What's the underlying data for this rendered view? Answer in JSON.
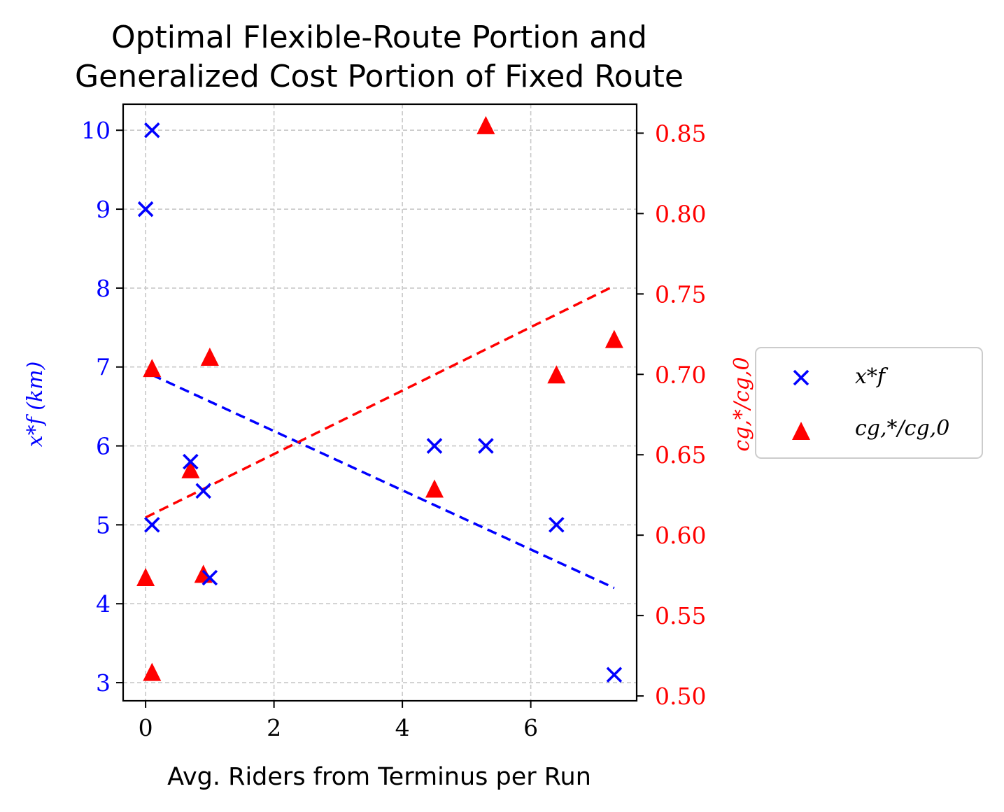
{
  "colors": {
    "series_x": "#0000ff",
    "series_c": "#ff0000",
    "grid": "#c8c8c8",
    "axis": "#000000",
    "legend_border": "#cccccc"
  },
  "chart_data": {
    "type": "scatter",
    "title_line1": "Optimal Flexible-Route Portion and",
    "title_line2": "Generalized Cost Portion of Fixed Route",
    "xlabel": "Avg. Riders from Terminus per Run",
    "ylabel_left": "x*f (km)",
    "ylabel_right": "cg,*/cg,0",
    "xlim": [
      -0.35,
      7.65
    ],
    "xticks": [
      0,
      2,
      4,
      6
    ],
    "ylim_left": [
      2.77,
      10.33
    ],
    "yticks_left": [
      3,
      4,
      5,
      6,
      7,
      8,
      9,
      10
    ],
    "ylim_right": [
      0.497,
      0.868
    ],
    "yticks_right": [
      0.5,
      0.55,
      0.6,
      0.65,
      0.7,
      0.75,
      0.8,
      0.85
    ],
    "yticks_right_labels": [
      "0.50",
      "0.55",
      "0.60",
      "0.65",
      "0.70",
      "0.75",
      "0.80",
      "0.85"
    ],
    "grid": true,
    "legend_position": "outside-right",
    "series": [
      {
        "name": "x*f",
        "axis": "left",
        "marker": "x",
        "x": [
          0.1,
          0.0,
          0.7,
          0.9,
          1.0,
          4.5,
          5.3,
          6.4,
          7.3,
          0.1
        ],
        "y": [
          10.0,
          9.0,
          5.8,
          5.43,
          4.33,
          6.0,
          6.0,
          5.0,
          3.1,
          5.0
        ],
        "trend": {
          "x0": 0.1,
          "y0": 6.9,
          "x1": 7.3,
          "y1": 4.2
        }
      },
      {
        "name": "cg,*/cg,0",
        "axis": "right",
        "marker": "triangle",
        "x": [
          5.3,
          0.1,
          1.0,
          7.3,
          6.4,
          0.7,
          4.5,
          0.0,
          0.9,
          0.1
        ],
        "y": [
          0.855,
          0.704,
          0.711,
          0.722,
          0.7,
          0.641,
          0.629,
          0.574,
          0.576,
          0.515
        ],
        "trend": {
          "x0": 0.0,
          "y0": 0.611,
          "x1": 7.3,
          "y1": 0.755
        }
      }
    ]
  }
}
